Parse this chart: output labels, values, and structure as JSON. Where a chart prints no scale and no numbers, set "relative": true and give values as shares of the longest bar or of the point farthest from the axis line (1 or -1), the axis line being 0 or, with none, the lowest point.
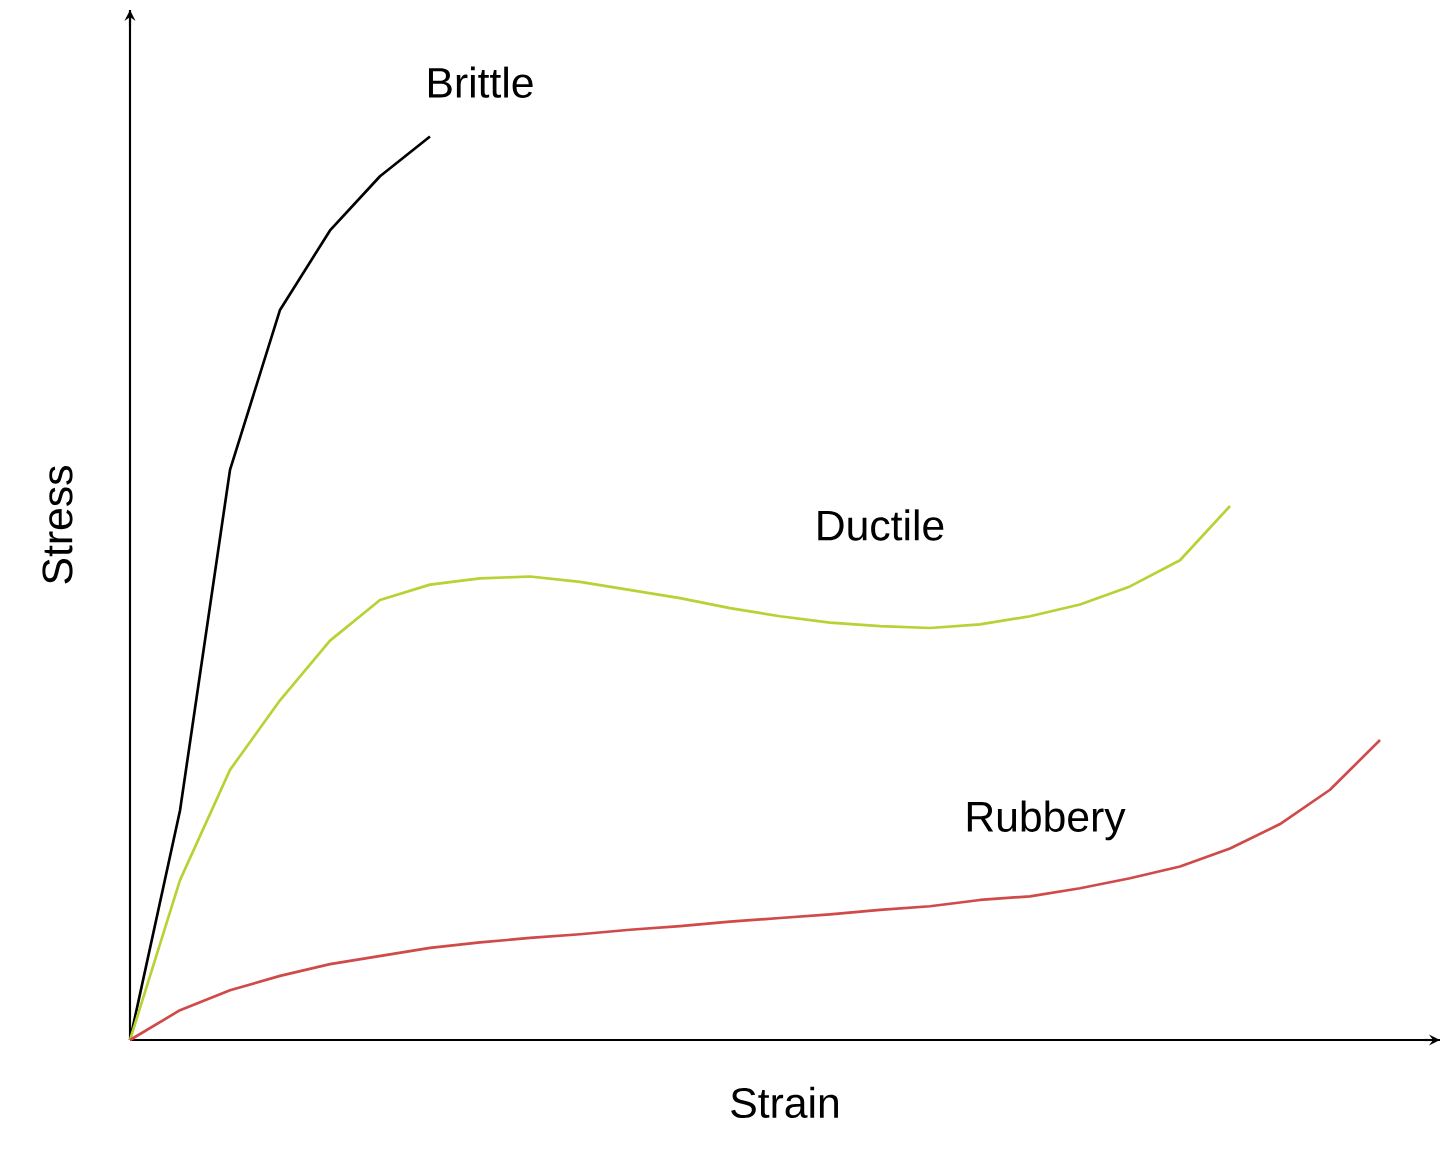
{
  "chart_data": {
    "type": "line",
    "relative": true,
    "xlabel": "Strain",
    "ylabel": "Stress",
    "marker": "none",
    "categories": [
      null,
      null,
      null,
      null,
      null,
      null,
      null,
      null,
      null,
      null,
      null,
      null,
      null,
      null,
      null,
      null,
      null,
      null,
      null,
      null,
      null,
      null,
      null,
      null,
      null,
      null
    ],
    "series": [
      {
        "name": "Brittle",
        "color": "#000000",
        "values": [
          0,
          0.254,
          0.631,
          0.808,
          0.896,
          0.956,
          1,
          null,
          null,
          null,
          null,
          null,
          null,
          null,
          null,
          null,
          null,
          null,
          null,
          null,
          null,
          null,
          null,
          null,
          null,
          null
        ]
      },
      {
        "name": "Ductile",
        "color": "#b5d334",
        "values": [
          0,
          0.177,
          0.299,
          0.376,
          0.442,
          0.487,
          0.504,
          0.511,
          0.513,
          0.507,
          0.498,
          0.489,
          0.478,
          0.469,
          0.462,
          0.458,
          0.456,
          0.46,
          0.469,
          0.482,
          0.502,
          0.531,
          0.591,
          null,
          null,
          null
        ]
      },
      {
        "name": "Rubbery",
        "color": "#d04a4a",
        "values": [
          0,
          0.033,
          0.055,
          0.071,
          0.084,
          0.093,
          0.102,
          0.108,
          0.113,
          0.117,
          0.122,
          0.126,
          0.131,
          0.135,
          0.139,
          0.144,
          0.148,
          0.155,
          0.159,
          0.168,
          0.179,
          0.192,
          0.212,
          0.239,
          0.277,
          0.332
        ]
      }
    ]
  }
}
